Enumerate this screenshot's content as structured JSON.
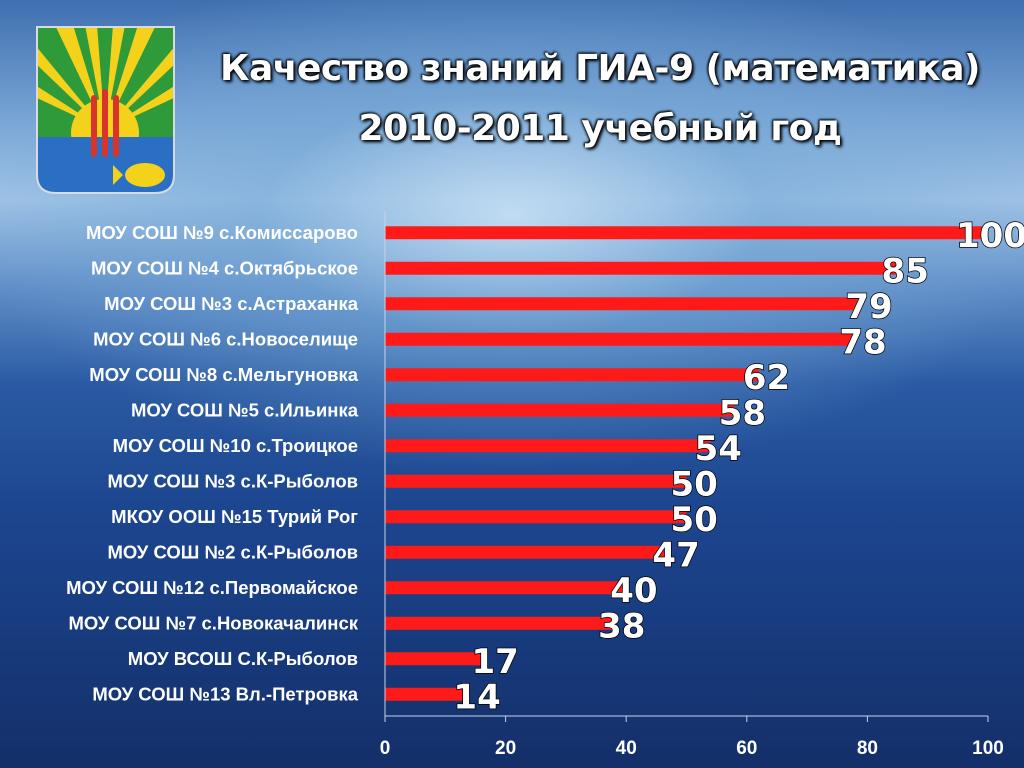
{
  "slide": {
    "title_line1": "Качество знаний ГИА-9 (математика)",
    "title_line2": "2010-2011 учебный год"
  },
  "emblem": {
    "icon": "coat-of-arms-icon"
  },
  "colors": {
    "bar": "#ff1a1a",
    "text": "#ffffff"
  },
  "chart_data": {
    "type": "bar",
    "orientation": "horizontal",
    "categories": [
      "МОУ СОШ №9 с.Комиссарово",
      "МОУ СОШ №4 с.Октябрьское",
      "МОУ СОШ №3 с.Астраханка",
      "МОУ СОШ №6 с.Новоселище",
      "МОУ СОШ №8 с.Мельгуновка",
      "МОУ СОШ №5 с.Ильинка",
      "МОУ СОШ №10 с.Троицкое",
      "МОУ СОШ №3 с.К-Рыболов",
      "МКОУ ООШ №15 Турий Рог",
      "МОУ СОШ №2 с.К-Рыболов",
      "МОУ СОШ №12 с.Первомайское",
      "МОУ СОШ №7 с.Новокачалинск",
      "МОУ ВСОШ С.К-Рыболов",
      "МОУ СОШ №13 Вл.-Петровка"
    ],
    "values": [
      100,
      85,
      79,
      78,
      62,
      58,
      54,
      50,
      50,
      47,
      40,
      38,
      17,
      14
    ],
    "value_labels": [
      "100",
      "85",
      "79",
      "78",
      "62",
      "58",
      "54",
      "50",
      "50",
      "47",
      "40",
      "38",
      "17",
      "14"
    ],
    "xlim": [
      0,
      100
    ],
    "x_ticks": [
      0,
      20,
      40,
      60,
      80,
      100
    ],
    "x_tick_labels": [
      "0",
      "20",
      "40",
      "60",
      "80",
      "100"
    ],
    "grid": false,
    "legend": "none"
  }
}
